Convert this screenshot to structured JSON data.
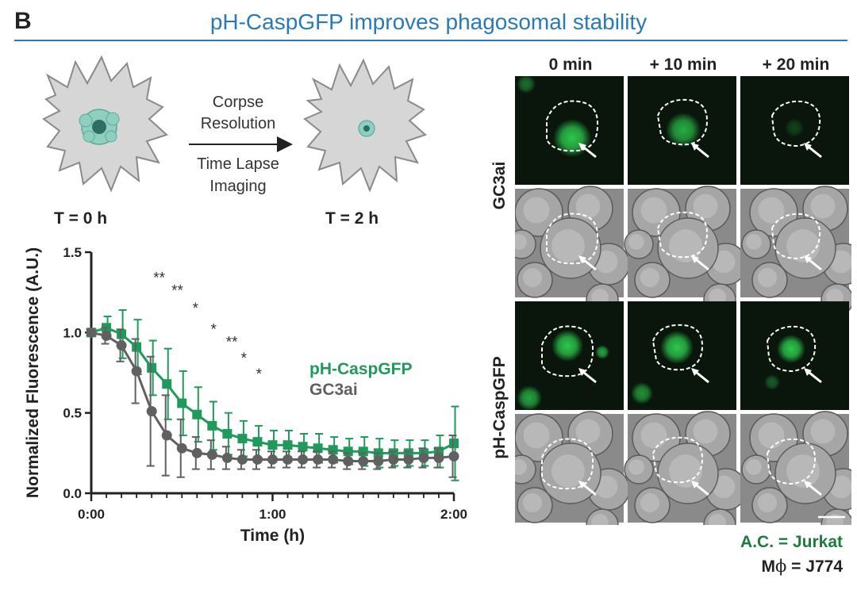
{
  "panel_label": "B",
  "title": "pH-CaspGFP improves phagosomal stability",
  "schematic": {
    "arrow_top_line1": "Corpse",
    "arrow_top_line2": "Resolution",
    "arrow_bottom_line1": "Time Lapse",
    "arrow_bottom_line2": "Imaging",
    "t0_label": "T = 0 h",
    "t2_label": "T = 2 h"
  },
  "colors": {
    "title": "#2a7ab8",
    "green": "#1f9a5a",
    "gray": "#606060",
    "fluor": "#2cc84c"
  },
  "chart_data": {
    "type": "line",
    "ylabel": "Normalized Fluorescence (A.U.)",
    "xlabel": "Time (h)",
    "ylim": [
      0,
      1.5
    ],
    "yticks": [
      "0.0",
      "0.5",
      "1.0",
      "1.5"
    ],
    "xlim": [
      0,
      120
    ],
    "xticks": [
      {
        "v": 0,
        "label": "0:00"
      },
      {
        "v": 60,
        "label": "1:00"
      },
      {
        "v": 120,
        "label": "2:00"
      }
    ],
    "x": [
      0,
      5,
      10,
      15,
      20,
      25,
      30,
      35,
      40,
      45,
      50,
      55,
      60,
      65,
      70,
      75,
      80,
      85,
      90,
      95,
      100,
      105,
      110,
      115,
      120
    ],
    "series": [
      {
        "name": "pH-CaspGFP",
        "marker": "square",
        "values": [
          1.0,
          1.03,
          0.99,
          0.91,
          0.78,
          0.68,
          0.56,
          0.49,
          0.42,
          0.37,
          0.34,
          0.32,
          0.3,
          0.3,
          0.29,
          0.28,
          0.27,
          0.26,
          0.26,
          0.25,
          0.25,
          0.25,
          0.25,
          0.26,
          0.31
        ],
        "errors": [
          0.02,
          0.07,
          0.15,
          0.17,
          0.17,
          0.22,
          0.2,
          0.17,
          0.15,
          0.13,
          0.11,
          0.1,
          0.09,
          0.09,
          0.08,
          0.09,
          0.08,
          0.08,
          0.09,
          0.09,
          0.08,
          0.08,
          0.08,
          0.1,
          0.23
        ]
      },
      {
        "name": "GC3ai",
        "marker": "circle",
        "values": [
          1.0,
          0.98,
          0.92,
          0.76,
          0.51,
          0.36,
          0.28,
          0.25,
          0.24,
          0.22,
          0.21,
          0.21,
          0.21,
          0.21,
          0.21,
          0.21,
          0.21,
          0.2,
          0.2,
          0.2,
          0.21,
          0.21,
          0.22,
          0.22,
          0.23
        ],
        "errors": [
          0.02,
          0.05,
          0.1,
          0.2,
          0.34,
          0.25,
          0.18,
          0.1,
          0.09,
          0.07,
          0.06,
          0.06,
          0.05,
          0.05,
          0.05,
          0.05,
          0.05,
          0.05,
          0.05,
          0.05,
          0.05,
          0.05,
          0.06,
          0.06,
          0.13
        ]
      }
    ],
    "annotations": [
      {
        "x": 22.5,
        "y": 1.31,
        "text": "**"
      },
      {
        "x": 28.5,
        "y": 1.23,
        "text": "**"
      },
      {
        "x": 34.5,
        "y": 1.12,
        "text": "*"
      },
      {
        "x": 40.5,
        "y": 0.99,
        "text": "*"
      },
      {
        "x": 46.5,
        "y": 0.91,
        "text": "**"
      },
      {
        "x": 50.5,
        "y": 0.81,
        "text": "*"
      },
      {
        "x": 55.5,
        "y": 0.71,
        "text": "*"
      }
    ]
  },
  "microscopy": {
    "columns": [
      "0 min",
      "+ 10 min",
      "+ 20 min"
    ],
    "rows": [
      {
        "label": "GC3ai"
      },
      {
        "label": "pH-CaspGFP"
      }
    ]
  },
  "footer": {
    "ac_label": "A.C. = Jurkat",
    "mphi_prefix": "M",
    "mphi_symbol": "ϕ",
    "mphi_suffix": " = J774"
  }
}
